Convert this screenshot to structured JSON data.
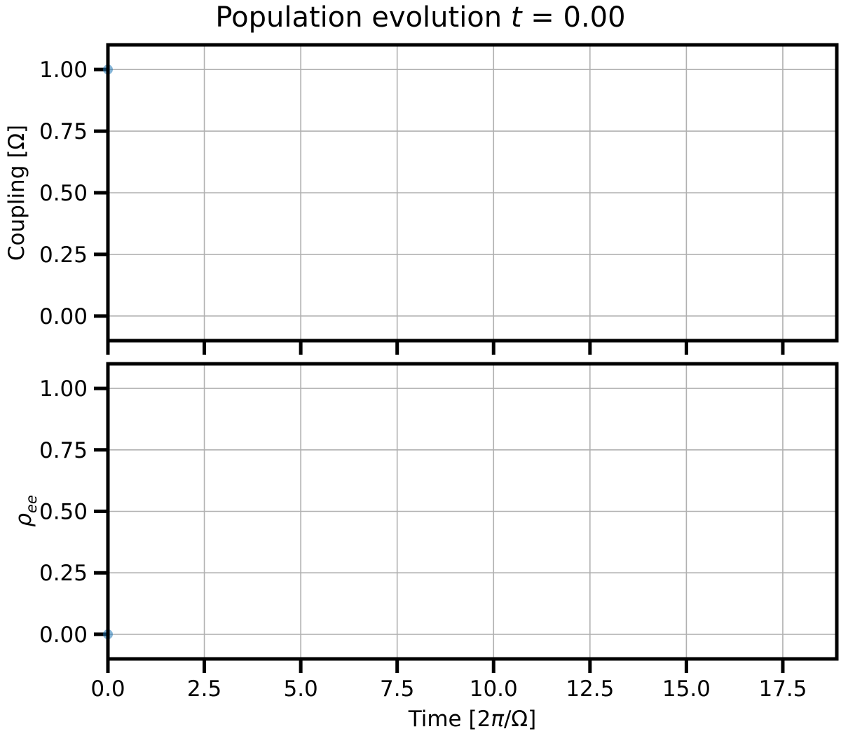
{
  "chart_data": {
    "type": "scatter",
    "title": "Population evolution t = 0.00",
    "title_prefix": "Population evolution",
    "title_var": "t",
    "title_value": "= 0.00",
    "grid": true,
    "marker_color": "#1f77b4",
    "xlabel": {
      "prefix": "Time [2",
      "var": "π",
      "suffix": "/Ω]"
    },
    "xlim": [
      0,
      18.9
    ],
    "xticks": [
      0.0,
      2.5,
      5.0,
      7.5,
      10.0,
      12.5,
      15.0,
      17.5
    ],
    "xtick_labels": [
      "0.0",
      "2.5",
      "5.0",
      "7.5",
      "10.0",
      "12.5",
      "15.0",
      "17.5"
    ],
    "panels": [
      {
        "id": "coupling",
        "ylabel": "Coupling [Ω]",
        "ylim": [
          -0.1,
          1.1
        ],
        "yticks": [
          0.0,
          0.25,
          0.5,
          0.75,
          1.0
        ],
        "ytick_labels": [
          "0.00",
          "0.25",
          "0.50",
          "0.75",
          "1.00"
        ],
        "points": [
          {
            "x": 0.0,
            "y": 1.0
          }
        ]
      },
      {
        "id": "rho-ee",
        "ylabel_symbol": "ρ",
        "ylabel_subscript": "ee",
        "ylim": [
          -0.1,
          1.1
        ],
        "yticks": [
          0.0,
          0.25,
          0.5,
          0.75,
          1.0
        ],
        "ytick_labels": [
          "0.00",
          "0.25",
          "0.50",
          "0.75",
          "1.00"
        ],
        "points": [
          {
            "x": 0.0,
            "y": 0.0
          }
        ]
      }
    ]
  }
}
